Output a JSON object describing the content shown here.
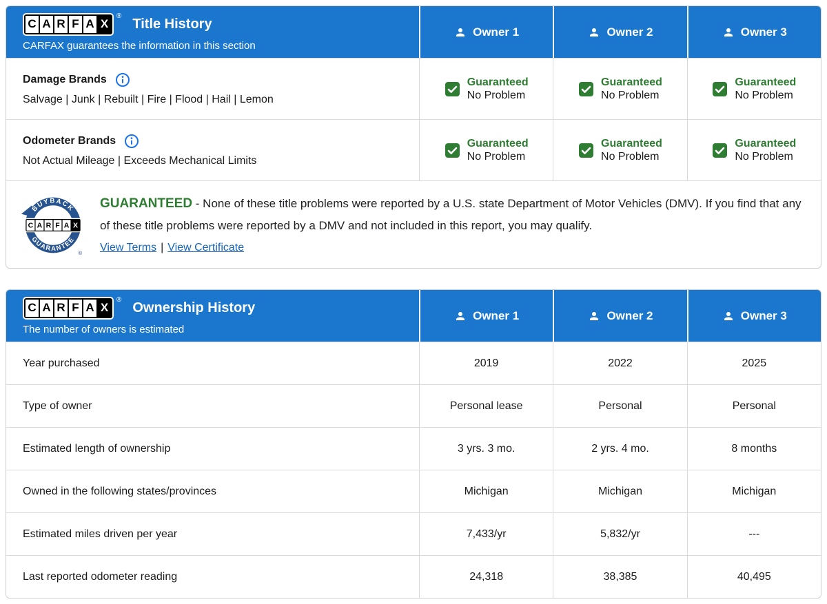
{
  "brand": {
    "logo_letters": [
      "C",
      "A",
      "R",
      "F",
      "A",
      "X"
    ],
    "registered_mark": "®"
  },
  "colors": {
    "header_blue": "#1b76ce",
    "status_green": "#2e7d32",
    "link_blue": "#1565c0",
    "seal_navy": "#27538f"
  },
  "title_history": {
    "title": "Title History",
    "subtitle": "CARFAX guarantees the information in this section",
    "owners": [
      "Owner 1",
      "Owner 2",
      "Owner 3"
    ],
    "rows": [
      {
        "label": "Damage Brands",
        "detail": "Salvage | Junk | Rebuilt | Fire | Flood | Hail | Lemon",
        "statuses": [
          {
            "line1": "Guaranteed",
            "line2": "No Problem"
          },
          {
            "line1": "Guaranteed",
            "line2": "No Problem"
          },
          {
            "line1": "Guaranteed",
            "line2": "No Problem"
          }
        ]
      },
      {
        "label": "Odometer Brands",
        "detail": "Not Actual Mileage | Exceeds Mechanical Limits",
        "statuses": [
          {
            "line1": "Guaranteed",
            "line2": "No Problem"
          },
          {
            "line1": "Guaranteed",
            "line2": "No Problem"
          },
          {
            "line1": "Guaranteed",
            "line2": "No Problem"
          }
        ]
      }
    ],
    "guarantee": {
      "seal_top_text": "BUYBACK",
      "seal_bottom_text": "GUARANTEE",
      "heading": "GUARANTEED",
      "body": "- None of these title problems were reported by a U.S. state Department of Motor Vehicles (DMV). If you find that any of these title problems were reported by a DMV and not included in this report, you may qualify.",
      "links": [
        "View Terms",
        "View Certificate"
      ],
      "link_separator": "|"
    }
  },
  "ownership_history": {
    "title": "Ownership History",
    "subtitle": "The number of owners is estimated",
    "owners": [
      "Owner 1",
      "Owner 2",
      "Owner 3"
    ],
    "rows": [
      {
        "label": "Year purchased",
        "values": [
          "2019",
          "2022",
          "2025"
        ]
      },
      {
        "label": "Type of owner",
        "values": [
          "Personal lease",
          "Personal",
          "Personal"
        ]
      },
      {
        "label": "Estimated length of ownership",
        "values": [
          "3 yrs. 3 mo.",
          "2 yrs. 4 mo.",
          "8 months"
        ]
      },
      {
        "label": "Owned in the following states/provinces",
        "values": [
          "Michigan",
          "Michigan",
          "Michigan"
        ]
      },
      {
        "label": "Estimated miles driven per year",
        "values": [
          "7,433/yr",
          "5,832/yr",
          "---"
        ]
      },
      {
        "label": "Last reported odometer reading",
        "values": [
          "24,318",
          "38,385",
          "40,495"
        ]
      }
    ]
  }
}
